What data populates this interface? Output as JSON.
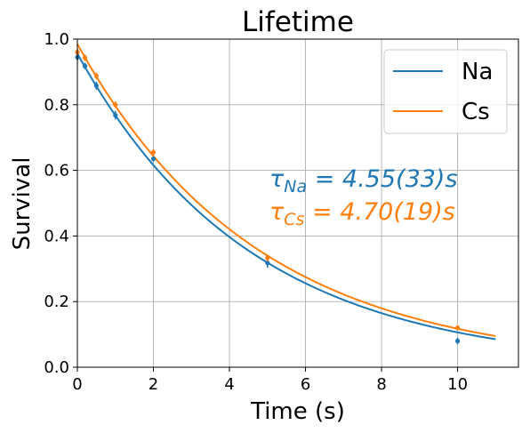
{
  "chart_data": {
    "type": "scatter",
    "title": "Lifetime",
    "xlabel": "Time (s)",
    "ylabel": "Survival",
    "xlim": [
      0,
      11.6
    ],
    "ylim": [
      0,
      1.0
    ],
    "xticks": [
      0,
      2,
      4,
      6,
      8,
      10
    ],
    "yticks": [
      0.0,
      0.2,
      0.4,
      0.6,
      0.8,
      1.0
    ],
    "xtick_labels": [
      "0",
      "2",
      "4",
      "6",
      "8",
      "10"
    ],
    "ytick_labels": [
      "0.0",
      "0.2",
      "0.4",
      "0.6",
      "0.8",
      "1.0"
    ],
    "grid": true,
    "legend_position": "top-right",
    "series": [
      {
        "name": "Na",
        "color": "#1f77b4",
        "fit": {
          "model": "A*exp(-t/tau)",
          "A": 0.956,
          "tau": 4.55,
          "x_range": [
            0,
            11
          ]
        },
        "points": [
          {
            "x": 0.0,
            "y": 0.945,
            "err": 0.01
          },
          {
            "x": 0.2,
            "y": 0.918,
            "err": 0.01
          },
          {
            "x": 0.5,
            "y": 0.858,
            "err": 0.012
          },
          {
            "x": 1.0,
            "y": 0.768,
            "err": 0.013
          },
          {
            "x": 2.0,
            "y": 0.635,
            "err": 0.008
          },
          {
            "x": 5.0,
            "y": 0.318,
            "err": 0.015
          },
          {
            "x": 10.0,
            "y": 0.08,
            "err": 0.01
          }
        ]
      },
      {
        "name": "Cs",
        "color": "#ff7f0e",
        "fit": {
          "model": "A*exp(-t/tau)",
          "A": 0.985,
          "tau": 4.7,
          "x_range": [
            0,
            11
          ]
        },
        "points": [
          {
            "x": 0.0,
            "y": 0.96,
            "err": 0.01
          },
          {
            "x": 0.2,
            "y": 0.943,
            "err": 0.01
          },
          {
            "x": 0.5,
            "y": 0.888,
            "err": 0.01
          },
          {
            "x": 1.0,
            "y": 0.8,
            "err": 0.01
          },
          {
            "x": 2.0,
            "y": 0.655,
            "err": 0.01
          },
          {
            "x": 5.0,
            "y": 0.333,
            "err": 0.01
          },
          {
            "x": 10.0,
            "y": 0.12,
            "err": 0.008
          }
        ]
      }
    ],
    "annotations": [
      {
        "sym": "τ",
        "sub": "Na",
        "rest": " = 4.55(33)s",
        "color": "#1f77b4"
      },
      {
        "sym": "τ",
        "sub": "Cs",
        "rest": " = 4.70(19)s",
        "color": "#ff7f0e"
      }
    ]
  }
}
